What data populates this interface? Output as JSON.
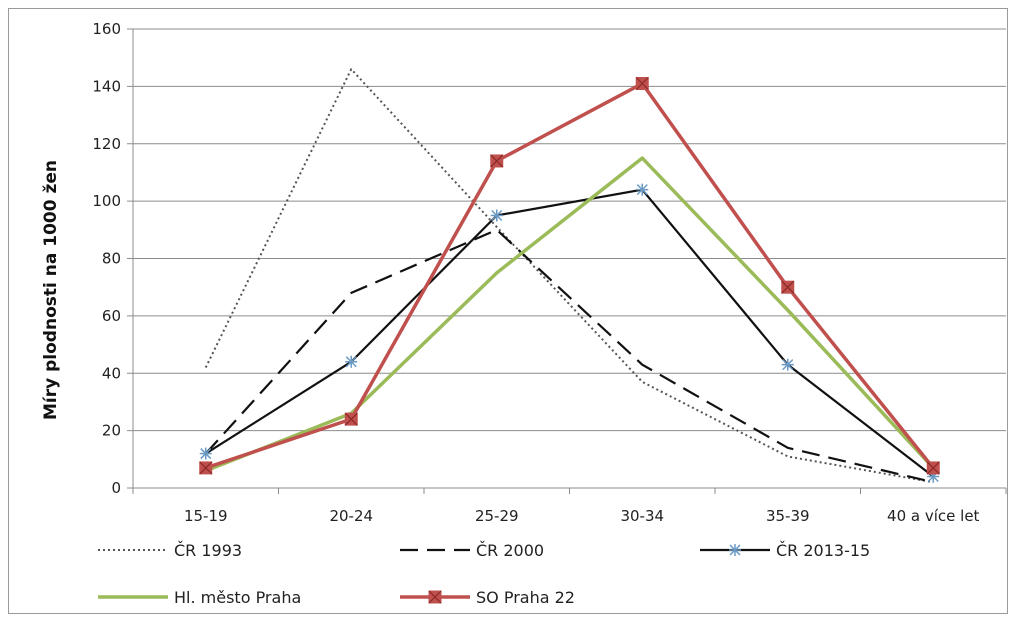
{
  "chart_data": {
    "type": "line",
    "title": "",
    "xlabel": "",
    "ylabel": "Míry plodnosti na 1000 žen",
    "ylim": [
      0,
      160
    ],
    "yticks": [
      0,
      20,
      40,
      60,
      80,
      100,
      120,
      140,
      160
    ],
    "categories": [
      "15-19",
      "20-24",
      "25-29",
      "30-34",
      "35-39",
      "40 a více let"
    ],
    "grid": "horizontal",
    "legend_position": "bottom",
    "series": [
      {
        "name": "ČR 1993",
        "values": [
          42,
          146,
          91,
          37,
          11,
          2
        ],
        "color": "#555555",
        "style": "dotted",
        "marker": "none"
      },
      {
        "name": "ČR 2000",
        "values": [
          12,
          68,
          90,
          43,
          14,
          2
        ],
        "color": "#111111",
        "style": "dashed",
        "marker": "none"
      },
      {
        "name": "ČR 2013-15",
        "values": [
          12,
          44,
          95,
          104,
          43,
          4
        ],
        "color": "#111111",
        "style": "solid",
        "marker": "star",
        "marker_color": "#6a9ac4"
      },
      {
        "name": "Hl. město Praha",
        "values": [
          6,
          26,
          75,
          115,
          62,
          7
        ],
        "color": "#9bbb59",
        "style": "solid",
        "marker": "none"
      },
      {
        "name": "SO Praha 22",
        "values": [
          7,
          24,
          114,
          141,
          70,
          7
        ],
        "color": "#c0504d",
        "style": "solid",
        "marker": "square"
      }
    ]
  }
}
